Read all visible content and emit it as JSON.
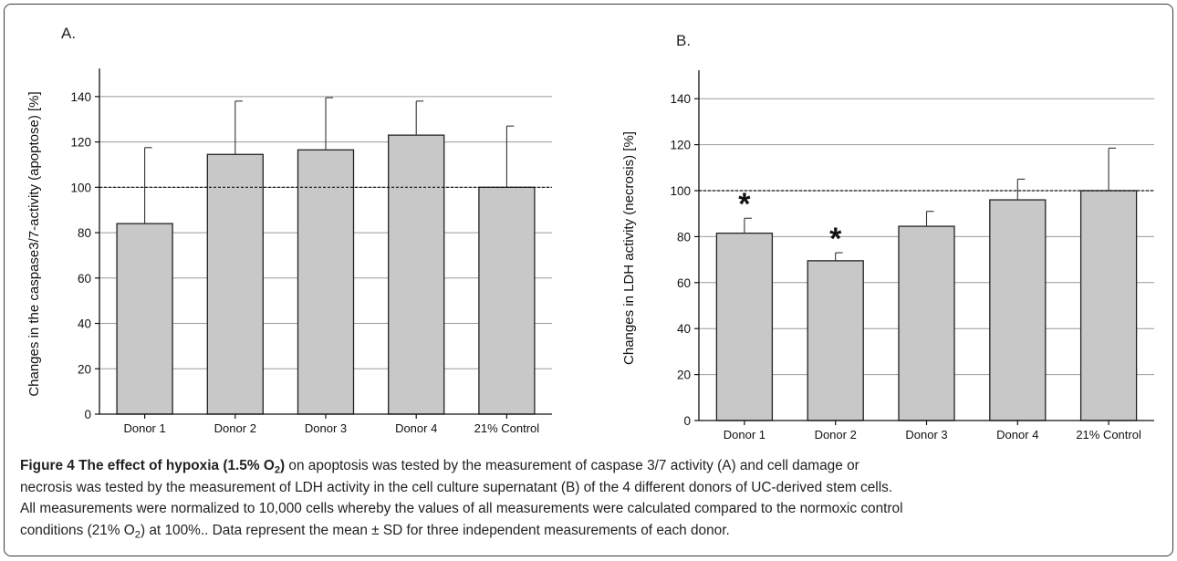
{
  "chart_data": [
    {
      "panel": "A.",
      "type": "bar",
      "ylabel": "Changes in the caspase3/7-activity (apoptose) [%]",
      "ylim": [
        0,
        150
      ],
      "yticks": [
        0,
        20,
        40,
        60,
        80,
        100,
        120,
        140
      ],
      "reference_line": 100,
      "categories": [
        "Donor 1",
        "Donor 2",
        "Donor 3",
        "Donor 4",
        "21% Control"
      ],
      "values": [
        84,
        114.5,
        116.5,
        123,
        100
      ],
      "error_upper": [
        117.5,
        138,
        139.5,
        138,
        127
      ],
      "significance": [
        "",
        "",
        "",
        "",
        ""
      ],
      "colors": {
        "bar": "#c8c8c8",
        "grid": "#9a9a9a"
      }
    },
    {
      "panel": "B.",
      "type": "bar",
      "ylabel": "Changes in LDH activity (necrosis) [%]",
      "ylim": [
        0,
        150
      ],
      "yticks": [
        0,
        20,
        40,
        60,
        80,
        100,
        120,
        140
      ],
      "reference_line": 100,
      "categories": [
        "Donor 1",
        "Donor 2",
        "Donor 3",
        "Donor 4",
        "21% Control"
      ],
      "values": [
        81.5,
        69.5,
        84.5,
        96,
        100
      ],
      "error_upper": [
        88,
        73,
        91,
        105,
        118.5
      ],
      "significance": [
        "*",
        "*",
        "",
        "",
        ""
      ],
      "colors": {
        "bar": "#c8c8c8",
        "grid": "#9a9a9a"
      }
    }
  ],
  "caption": {
    "bold_a": "Figure 4 The effect of hypoxia (1.5% O",
    "bold_sub": "2",
    "bold_b": ")",
    "line1_rest": " on apoptosis was tested by the measurement of caspase 3/7 activity (A) and cell damage or",
    "line2": "necrosis was tested by the measurement of LDH activity in the cell culture supernatant (B) of the 4 different donors of UC-derived stem cells.",
    "line3": "All measurements were normalized to 10,000 cells whereby the values of all measurements were calculated compared to the normoxic control",
    "line4_a": "conditions (21% O",
    "line4_sub": "2",
    "line4_b": ") at 100%.. Data represent the mean ± SD for three independent measurements of each donor."
  }
}
